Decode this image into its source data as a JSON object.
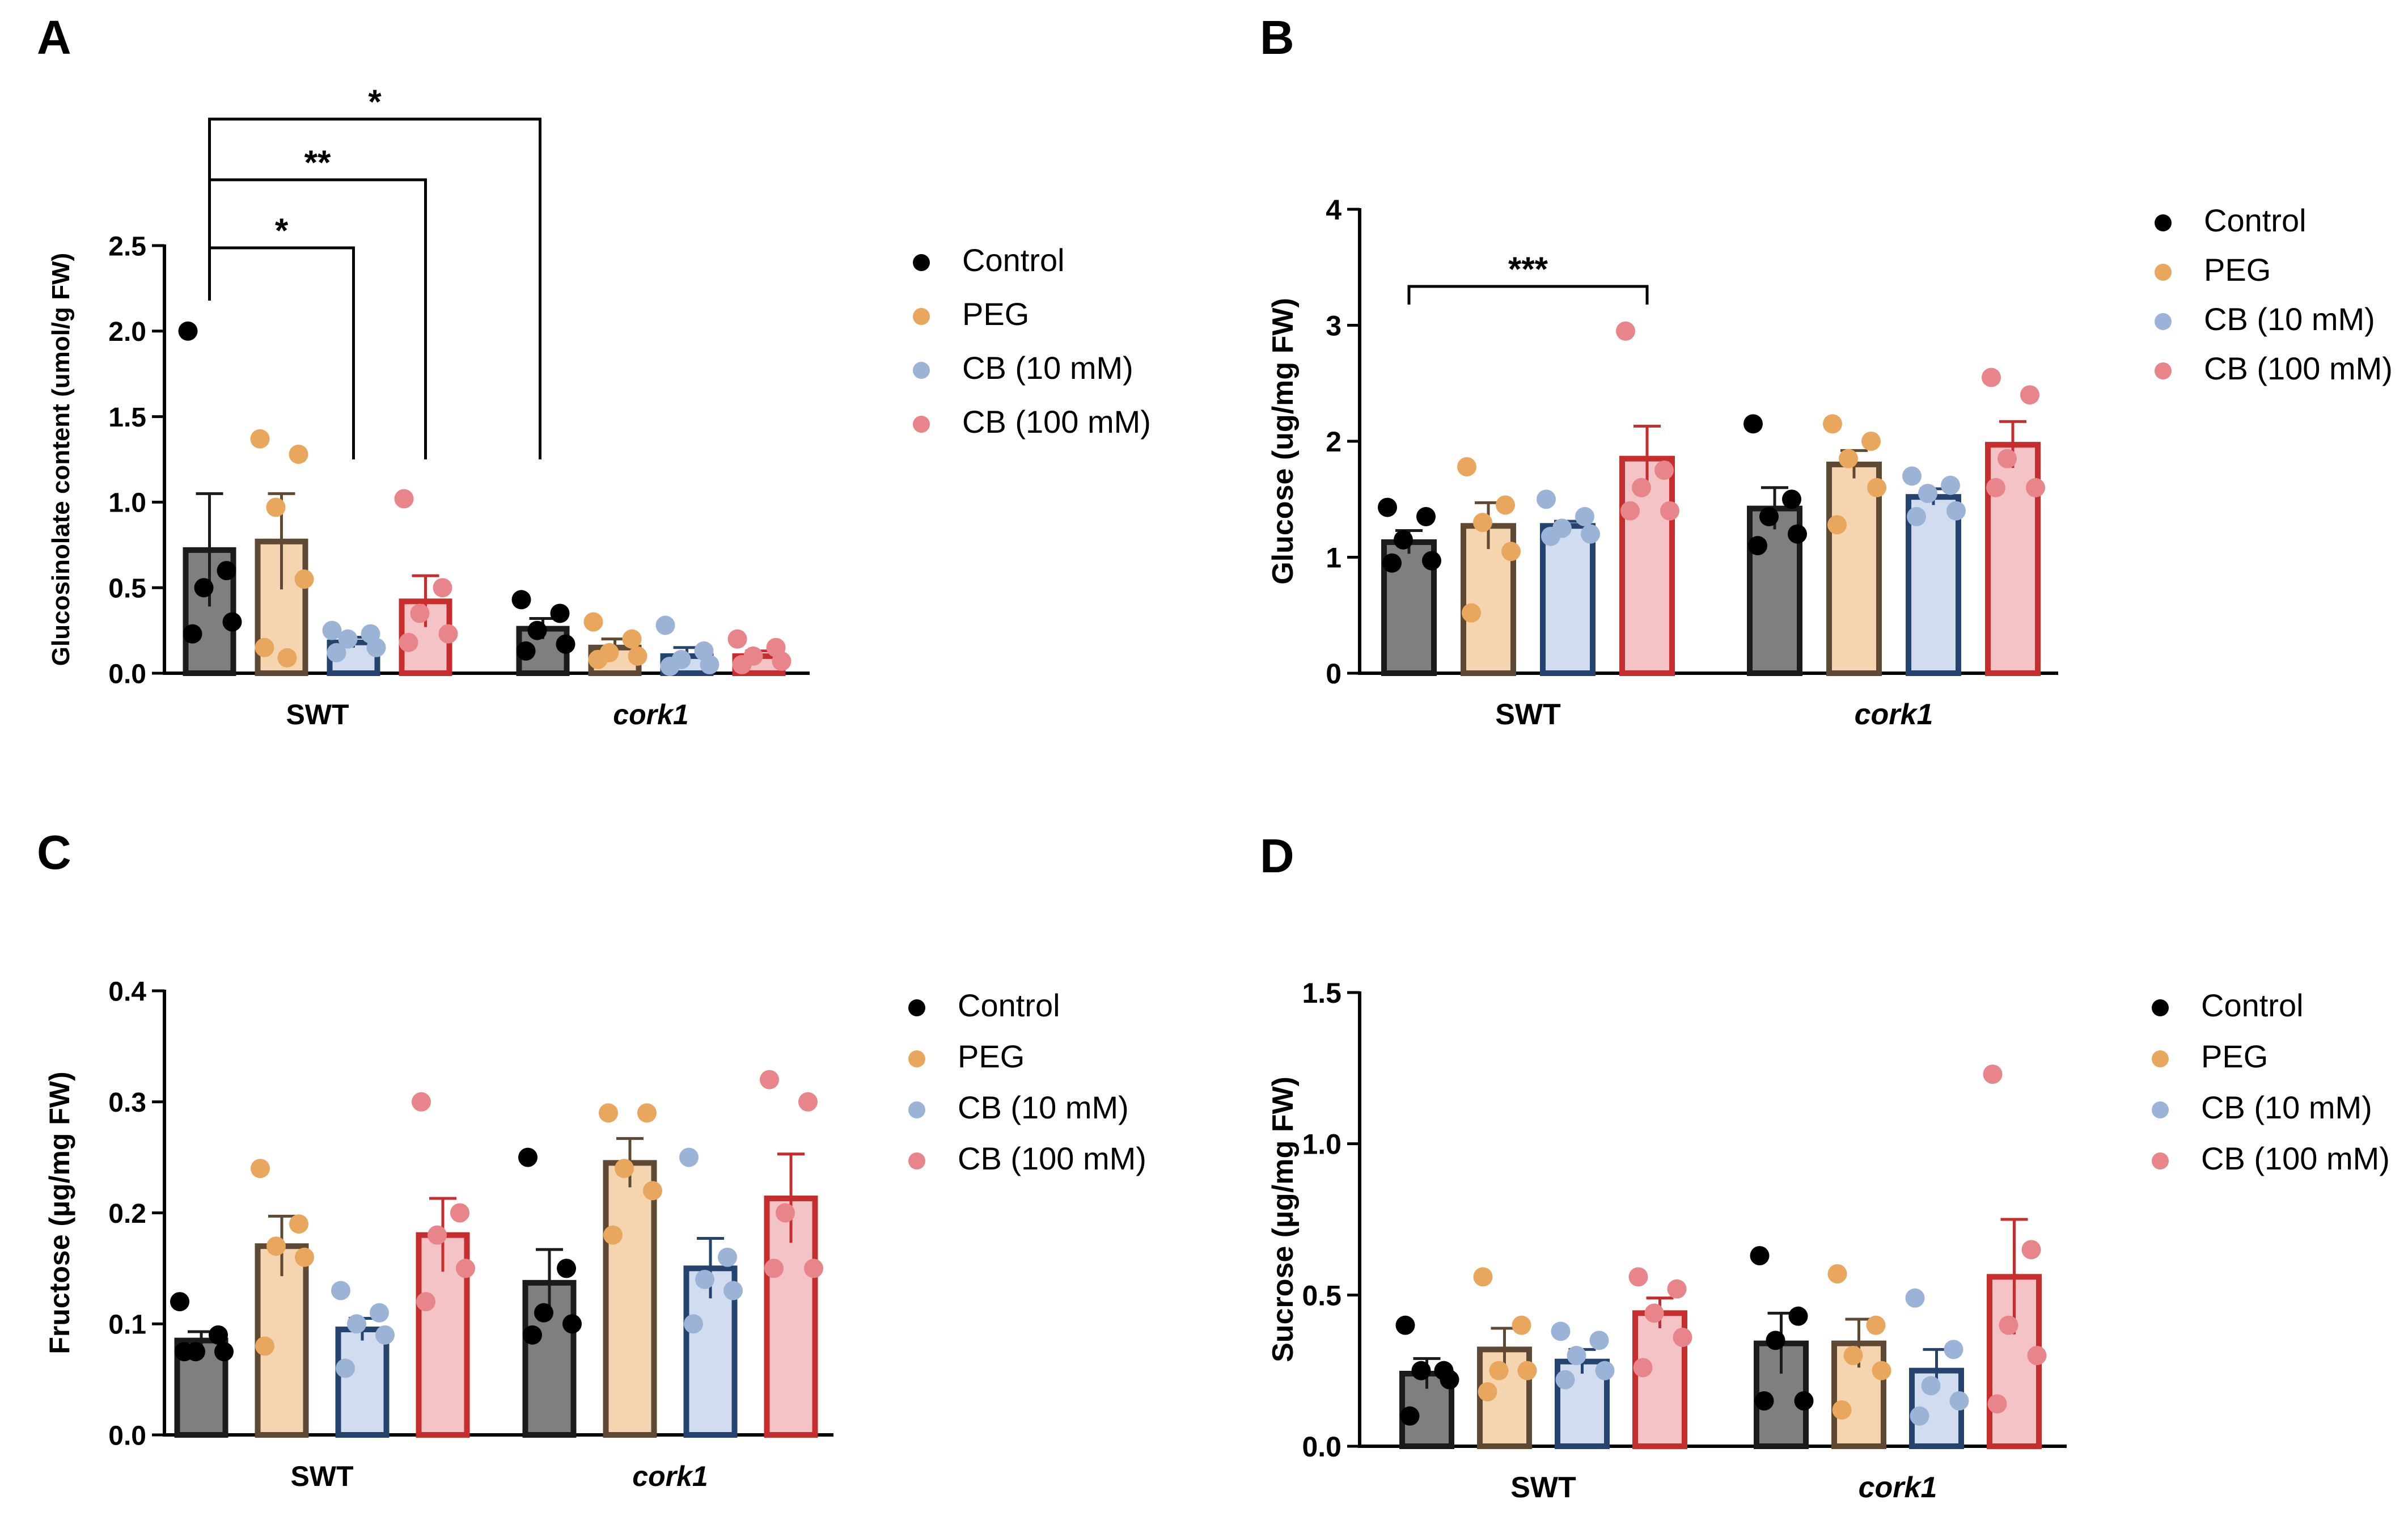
{
  "colors": {
    "Control": "#000000",
    "PEG": "#E9A75E",
    "CB (10 mM)": "#9CB3D8",
    "CB (100 mM)": "#E8858A"
  },
  "chart_data": [
    {
      "panel": "A",
      "type": "bar",
      "ylabel": "Glucosinolate content (umol/g FW)",
      "ylim": [
        0,
        2.5
      ],
      "yticks": [
        "0.0",
        "0.5",
        "1.0",
        "1.5",
        "2.0",
        "2.5"
      ],
      "categories": [
        "SWT",
        "cork1"
      ],
      "legend": [
        "Control",
        "PEG",
        "CB (10 mM)",
        "CB (100 mM)"
      ],
      "series": [
        {
          "name": "Control",
          "means": [
            0.72,
            0.26
          ],
          "sem": [
            0.33,
            0.06
          ],
          "points": [
            [
              2.0,
              0.6,
              0.5,
              0.3,
              0.23
            ],
            [
              0.43,
              0.35,
              0.25,
              0.17,
              0.13
            ]
          ]
        },
        {
          "name": "PEG",
          "means": [
            0.77,
            0.15
          ],
          "sem": [
            0.28,
            0.05
          ],
          "points": [
            [
              1.37,
              1.28,
              0.97,
              0.55,
              0.15,
              0.09
            ],
            [
              0.3,
              0.2,
              0.12,
              0.1,
              0.08
            ]
          ]
        },
        {
          "name": "CB (10 mM)",
          "means": [
            0.18,
            0.1
          ],
          "sem": [
            0.03,
            0.05
          ],
          "points": [
            [
              0.25,
              0.23,
              0.2,
              0.15,
              0.12
            ],
            [
              0.28,
              0.13,
              0.08,
              0.05,
              0.04
            ]
          ]
        },
        {
          "name": "CB (100 mM)",
          "means": [
            0.42,
            0.1
          ],
          "sem": [
            0.15,
            0.03
          ],
          "points": [
            [
              1.02,
              0.5,
              0.35,
              0.23,
              0.18
            ],
            [
              0.2,
              0.15,
              0.1,
              0.07,
              0.05
            ]
          ]
        }
      ],
      "significance": [
        {
          "from": "Control",
          "to": "CB (10 mM)",
          "label": "*"
        },
        {
          "from": "Control",
          "to": "CB (100 mM)",
          "label": "**"
        },
        {
          "from": "Control",
          "to": "cork1 Control",
          "label": "*"
        }
      ]
    },
    {
      "panel": "B",
      "type": "bar",
      "ylabel": "Glucose (ug/mg FW)",
      "ylim": [
        0,
        4
      ],
      "yticks": [
        "0",
        "1",
        "2",
        "3",
        "4"
      ],
      "categories": [
        "SWT",
        "cork1"
      ],
      "legend": [
        "Control",
        "PEG",
        "CB (10 mM)",
        "CB (100 mM)"
      ],
      "series": [
        {
          "name": "Control",
          "means": [
            1.13,
            1.42
          ],
          "sem": [
            0.1,
            0.18
          ],
          "points": [
            [
              1.43,
              1.35,
              1.15,
              0.97,
              0.95
            ],
            [
              2.15,
              1.5,
              1.35,
              1.2,
              1.1
            ]
          ]
        },
        {
          "name": "PEG",
          "means": [
            1.27,
            1.8
          ],
          "sem": [
            0.2,
            0.12
          ],
          "points": [
            [
              1.78,
              1.45,
              1.3,
              1.05,
              0.52
            ],
            [
              2.15,
              2.0,
              1.85,
              1.6,
              1.28
            ]
          ]
        },
        {
          "name": "CB (10 mM)",
          "means": [
            1.27,
            1.52
          ],
          "sem": [
            0.04,
            0.07
          ],
          "points": [
            [
              1.5,
              1.35,
              1.25,
              1.2,
              1.18
            ],
            [
              1.7,
              1.62,
              1.55,
              1.4,
              1.35
            ]
          ]
        },
        {
          "name": "CB (100 mM)",
          "means": [
            1.85,
            1.97
          ],
          "sem": [
            0.28,
            0.2
          ],
          "points": [
            [
              2.95,
              1.75,
              1.6,
              1.4,
              1.4
            ],
            [
              2.55,
              2.4,
              1.85,
              1.6,
              1.6
            ]
          ]
        }
      ],
      "significance": [
        {
          "from": "Control",
          "to": "CB (100 mM)",
          "label": "***"
        }
      ]
    },
    {
      "panel": "C",
      "type": "bar",
      "ylabel": "Fructose (µg/mg FW)",
      "ylim": [
        0,
        0.4
      ],
      "yticks": [
        "0.0",
        "0.1",
        "0.2",
        "0.3",
        "0.4"
      ],
      "categories": [
        "SWT",
        "cork1"
      ],
      "legend": [
        "Control",
        "PEG",
        "CB (10 mM)",
        "CB (100 mM)"
      ],
      "series": [
        {
          "name": "Control",
          "means": [
            0.085,
            0.137
          ],
          "sem": [
            0.008,
            0.03
          ],
          "points": [
            [
              0.12,
              0.09,
              0.075,
              0.075,
              0.075
            ],
            [
              0.25,
              0.15,
              0.11,
              0.1,
              0.09
            ]
          ]
        },
        {
          "name": "PEG",
          "means": [
            0.17,
            0.245
          ],
          "sem": [
            0.027,
            0.022
          ],
          "points": [
            [
              0.24,
              0.19,
              0.17,
              0.16,
              0.08
            ],
            [
              0.29,
              0.29,
              0.24,
              0.22,
              0.18
            ]
          ]
        },
        {
          "name": "CB (10 mM)",
          "means": [
            0.095,
            0.15
          ],
          "sem": [
            0.01,
            0.027
          ],
          "points": [
            [
              0.13,
              0.11,
              0.1,
              0.09,
              0.06
            ],
            [
              0.25,
              0.16,
              0.14,
              0.13,
              0.1
            ]
          ]
        },
        {
          "name": "CB (100 mM)",
          "means": [
            0.18,
            0.213
          ],
          "sem": [
            0.033,
            0.04
          ],
          "points": [
            [
              0.3,
              0.2,
              0.18,
              0.15,
              0.12
            ],
            [
              0.32,
              0.3,
              0.2,
              0.15,
              0.15
            ]
          ]
        }
      ]
    },
    {
      "panel": "D",
      "type": "bar",
      "ylabel": "Sucrose (µg/mg FW)",
      "ylim": [
        0,
        1.5
      ],
      "yticks": [
        "0.0",
        "0.5",
        "1.0",
        "1.5"
      ],
      "categories": [
        "SWT",
        "cork1"
      ],
      "legend": [
        "Control",
        "PEG",
        "CB (10 mM)",
        "CB (100 mM)"
      ],
      "series": [
        {
          "name": "Control",
          "means": [
            0.24,
            0.34
          ],
          "sem": [
            0.05,
            0.1
          ],
          "points": [
            [
              0.4,
              0.25,
              0.25,
              0.22,
              0.1
            ],
            [
              0.63,
              0.43,
              0.35,
              0.15,
              0.15
            ]
          ]
        },
        {
          "name": "PEG",
          "means": [
            0.32,
            0.34
          ],
          "sem": [
            0.07,
            0.08
          ],
          "points": [
            [
              0.56,
              0.4,
              0.25,
              0.25,
              0.18
            ],
            [
              0.57,
              0.4,
              0.3,
              0.25,
              0.12
            ]
          ]
        },
        {
          "name": "CB (10 mM)",
          "means": [
            0.28,
            0.25
          ],
          "sem": [
            0.04,
            0.07
          ],
          "points": [
            [
              0.38,
              0.35,
              0.3,
              0.25,
              0.22
            ],
            [
              0.49,
              0.32,
              0.2,
              0.15,
              0.1
            ]
          ]
        },
        {
          "name": "CB (100 mM)",
          "means": [
            0.44,
            0.56
          ],
          "sem": [
            0.05,
            0.19
          ],
          "points": [
            [
              0.56,
              0.52,
              0.44,
              0.36,
              0.26
            ],
            [
              1.23,
              0.65,
              0.4,
              0.3,
              0.14
            ]
          ]
        }
      ]
    }
  ]
}
